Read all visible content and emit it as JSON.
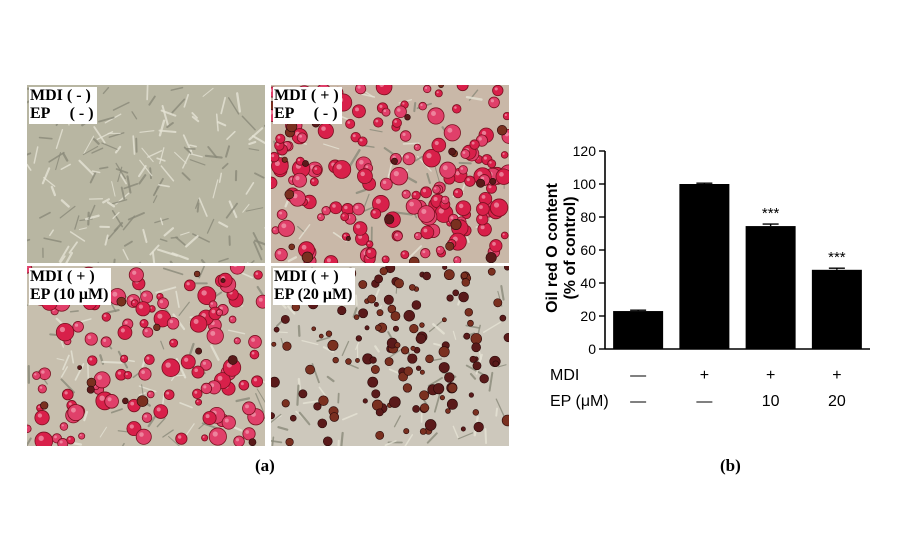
{
  "micrographs": [
    {
      "line1": "MDI ( - )",
      "line2": "EP     ( - )"
    },
    {
      "line1": "MDI ( + )",
      "line2": "EP     ( - )"
    },
    {
      "line1": "MDI ( + )",
      "line2": "EP (10 μM)"
    },
    {
      "line1": "MDI ( + )",
      "line2": "EP (20 μM)"
    }
  ],
  "captions": {
    "a": "(a)",
    "b": "(b)"
  },
  "colors": {
    "bar": "#000000",
    "stain_red": "#d8204a",
    "stain_dark": "#5a1a1a",
    "background_cells": "#b9b59e"
  },
  "chart_data": {
    "type": "bar",
    "ylabel": "Oil red O content (% of control)",
    "ylabel_lines": [
      "Oil red O content",
      "(% of control)"
    ],
    "ylim": [
      0,
      120
    ],
    "yticks": [
      0,
      20,
      40,
      60,
      80,
      100,
      120
    ],
    "values": [
      23,
      100,
      74.5,
      48
    ],
    "errors": [
      0.5,
      0.5,
      1.2,
      1.0
    ],
    "significance": [
      "",
      "",
      "***",
      "***"
    ],
    "row_labels": [
      "MDI",
      "EP (μM)"
    ],
    "rows": [
      [
        "—",
        "+",
        "+",
        "+"
      ],
      [
        "—",
        "—",
        "10",
        "20"
      ]
    ]
  }
}
